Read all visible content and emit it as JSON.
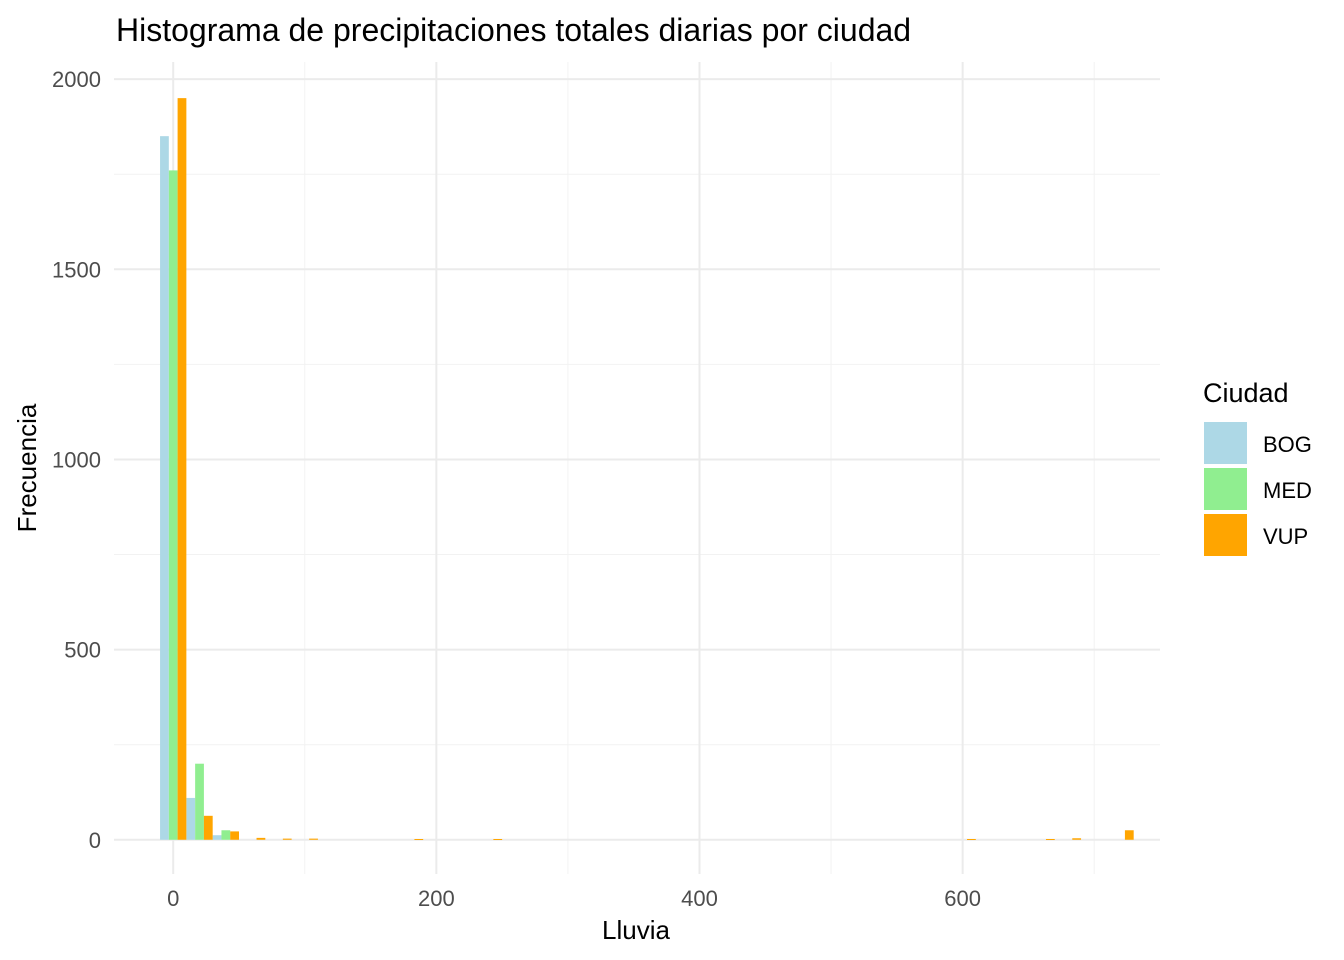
{
  "chart_data": {
    "type": "bar",
    "title": "Histograma de precipitaciones totales diarias por ciudad",
    "xlabel": "Lluvia",
    "ylabel": "Frecuencia",
    "xlim": [
      -45,
      750
    ],
    "ylim": [
      -90,
      2045
    ],
    "xticks": [
      "0",
      "200",
      "400",
      "600"
    ],
    "yticks": [
      "0",
      "500",
      "1000",
      "1500",
      "2000"
    ],
    "bin_width": 20,
    "grid": true,
    "legend": {
      "title": "Ciudad",
      "position": "right"
    },
    "series": [
      {
        "name": "BOG",
        "color": "#ADD8E6",
        "bins": [
          [
            0,
            1850
          ],
          [
            20,
            110
          ],
          [
            40,
            12
          ]
        ]
      },
      {
        "name": "MED",
        "color": "#90EE90",
        "bins": [
          [
            0,
            1760
          ],
          [
            20,
            200
          ],
          [
            40,
            25
          ]
        ]
      },
      {
        "name": "VUP",
        "color": "#FFA500",
        "bins": [
          [
            0,
            1950
          ],
          [
            20,
            63
          ],
          [
            40,
            22
          ],
          [
            60,
            5
          ],
          [
            80,
            3
          ],
          [
            100,
            3
          ],
          [
            180,
            2
          ],
          [
            240,
            2
          ],
          [
            600,
            2
          ],
          [
            660,
            2
          ],
          [
            680,
            4
          ],
          [
            720,
            25
          ]
        ]
      }
    ]
  }
}
